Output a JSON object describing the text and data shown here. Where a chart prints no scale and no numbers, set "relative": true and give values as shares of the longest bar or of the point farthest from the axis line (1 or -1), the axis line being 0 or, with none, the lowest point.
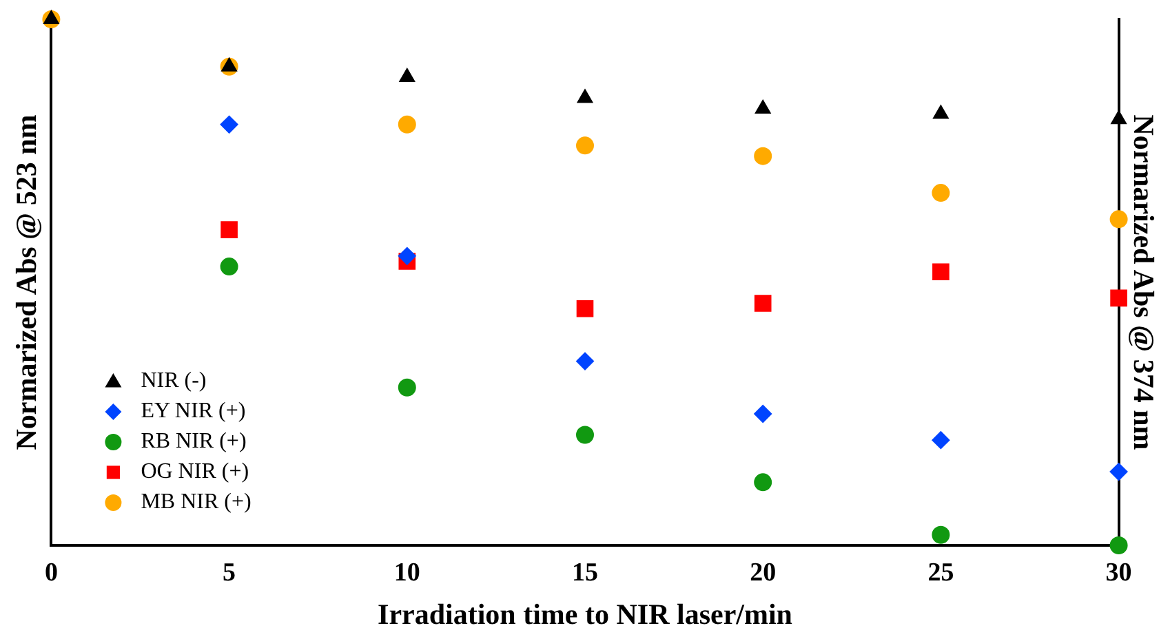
{
  "chart_data": {
    "type": "scatter",
    "xlabel": "Irradiation time to NIR laser/min",
    "ylabel": "Normarized Abs @ 523 nm",
    "y2label": "Normarized Abs @ 374 nm",
    "relative": true,
    "xlim": [
      0,
      30
    ],
    "xticks": [
      0,
      5,
      10,
      15,
      20,
      25,
      30
    ],
    "x": [
      0,
      5,
      10,
      15,
      20,
      25,
      30
    ],
    "legend": "bottom left",
    "grid": false,
    "series": [
      {
        "name": "NIR (-)",
        "color": "#000000",
        "marker": "triangle",
        "values": [
          1,
          0.91,
          0.89,
          0.85,
          0.83,
          0.82,
          0.81
        ]
      },
      {
        "name": "EY NIR (+)",
        "color": "#0044ff",
        "marker": "diamond",
        "values": [
          null,
          0.8,
          0.55,
          0.35,
          0.25,
          0.2,
          0.14
        ]
      },
      {
        "name": "RB NIR (+)",
        "color": "#119911",
        "marker": "circle",
        "values": [
          null,
          0.53,
          0.3,
          0.21,
          0.12,
          0.02,
          0
        ]
      },
      {
        "name": "OG NIR (+)",
        "color": "#ff0000",
        "marker": "square",
        "values": [
          null,
          0.6,
          0.54,
          0.45,
          0.46,
          0.52,
          0.47
        ]
      },
      {
        "name": "MB NIR (+)",
        "color": "#ffaa00",
        "marker": "circle",
        "values": [
          1,
          0.91,
          0.8,
          0.76,
          0.74,
          0.67,
          0.62
        ]
      }
    ]
  }
}
